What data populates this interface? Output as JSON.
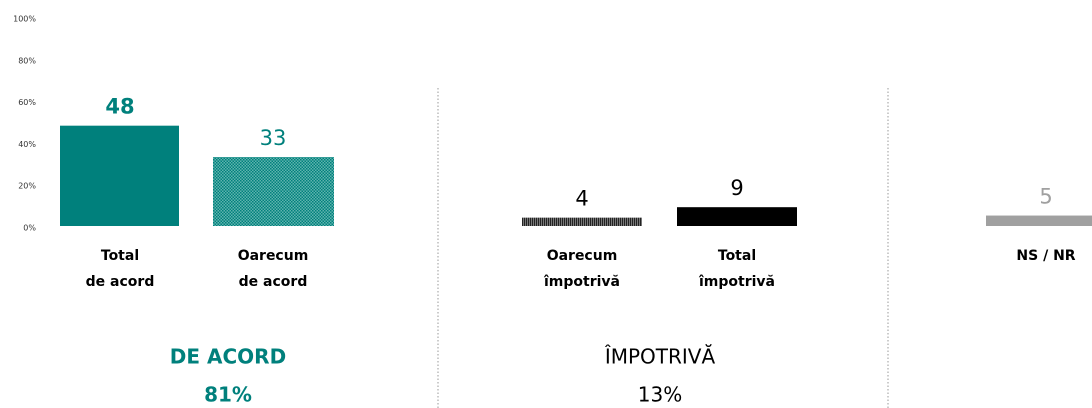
{
  "chart_data": {
    "type": "bar",
    "categories": [
      "Total\nde acord",
      "Oarecum\nde acord",
      "Oarecum\nîmpotrivă",
      "Total\nîmpotrivă",
      "NS / NR"
    ],
    "values": [
      48,
      33,
      4,
      9,
      5
    ],
    "colors": [
      "#00807c",
      "url(#dots-teal)",
      "url(#lines-gray)",
      "#000000",
      "#a0a0a0"
    ],
    "label_colors": [
      "#00807c",
      "#00807c",
      "#000000",
      "#000000",
      "#a0a0a0"
    ],
    "ylim": [
      0,
      100
    ],
    "yticks": [
      {
        "value": 0,
        "label": "0%"
      },
      {
        "value": 20,
        "label": "20%"
      },
      {
        "value": 40,
        "label": "40%"
      },
      {
        "value": 60,
        "label": "60%"
      },
      {
        "value": 80,
        "label": "80%"
      },
      {
        "value": 100,
        "label": "100%"
      }
    ],
    "grid": false,
    "groups": [
      {
        "name": "DE ACORD",
        "value_label": "81%",
        "color": "#00807c"
      },
      {
        "name": "ÎMPOTRIVĂ",
        "value_label": "13%",
        "color": "#000000"
      }
    ]
  }
}
